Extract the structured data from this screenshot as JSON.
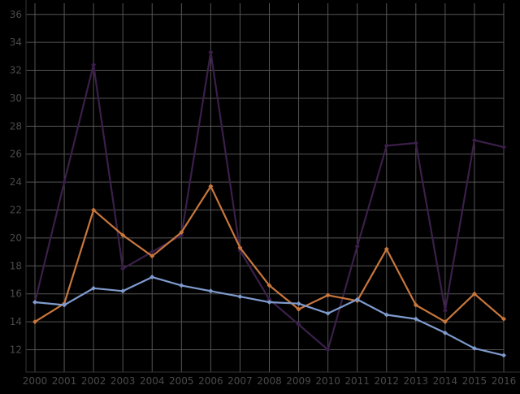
{
  "chart_data": {
    "type": "line",
    "title": "",
    "xlabel": "",
    "ylabel": "",
    "x": [
      "2000",
      "2001",
      "2002",
      "2003",
      "2004",
      "2005",
      "2006",
      "2007",
      "2008",
      "2009",
      "2010",
      "2011",
      "2012",
      "2013",
      "2014",
      "2015",
      "2016"
    ],
    "y_ticks": [
      "12",
      "14",
      "16",
      "18",
      "20",
      "22",
      "24",
      "26",
      "28",
      "30",
      "32",
      "34",
      "36"
    ],
    "ylim": [
      10.4,
      36.8
    ],
    "grid": true,
    "legend": "none",
    "series": [
      {
        "color": "#3b1f4a",
        "values": [
          15.4,
          24.0,
          32.4,
          17.8,
          19.0,
          20.2,
          33.3,
          19.1,
          15.6,
          13.8,
          12.0,
          19.4,
          26.6,
          26.8,
          14.8,
          27.0,
          26.5
        ]
      },
      {
        "color": "#c8773d",
        "values": [
          14.0,
          15.3,
          22.0,
          20.2,
          18.7,
          20.4,
          23.7,
          19.3,
          16.6,
          14.9,
          15.9,
          15.5,
          19.2,
          15.2,
          14.0,
          16.0,
          14.2
        ]
      },
      {
        "color": "#7f9bce",
        "values": [
          15.4,
          15.2,
          16.4,
          16.2,
          17.2,
          16.6,
          16.2,
          15.8,
          15.4,
          15.3,
          14.6,
          15.6,
          14.5,
          14.2,
          13.2,
          12.1,
          11.6
        ]
      }
    ],
    "colors": {
      "background": "#000000",
      "grid": "#555555",
      "axis": "#333333",
      "tick_label": "#4a4a4a"
    }
  }
}
